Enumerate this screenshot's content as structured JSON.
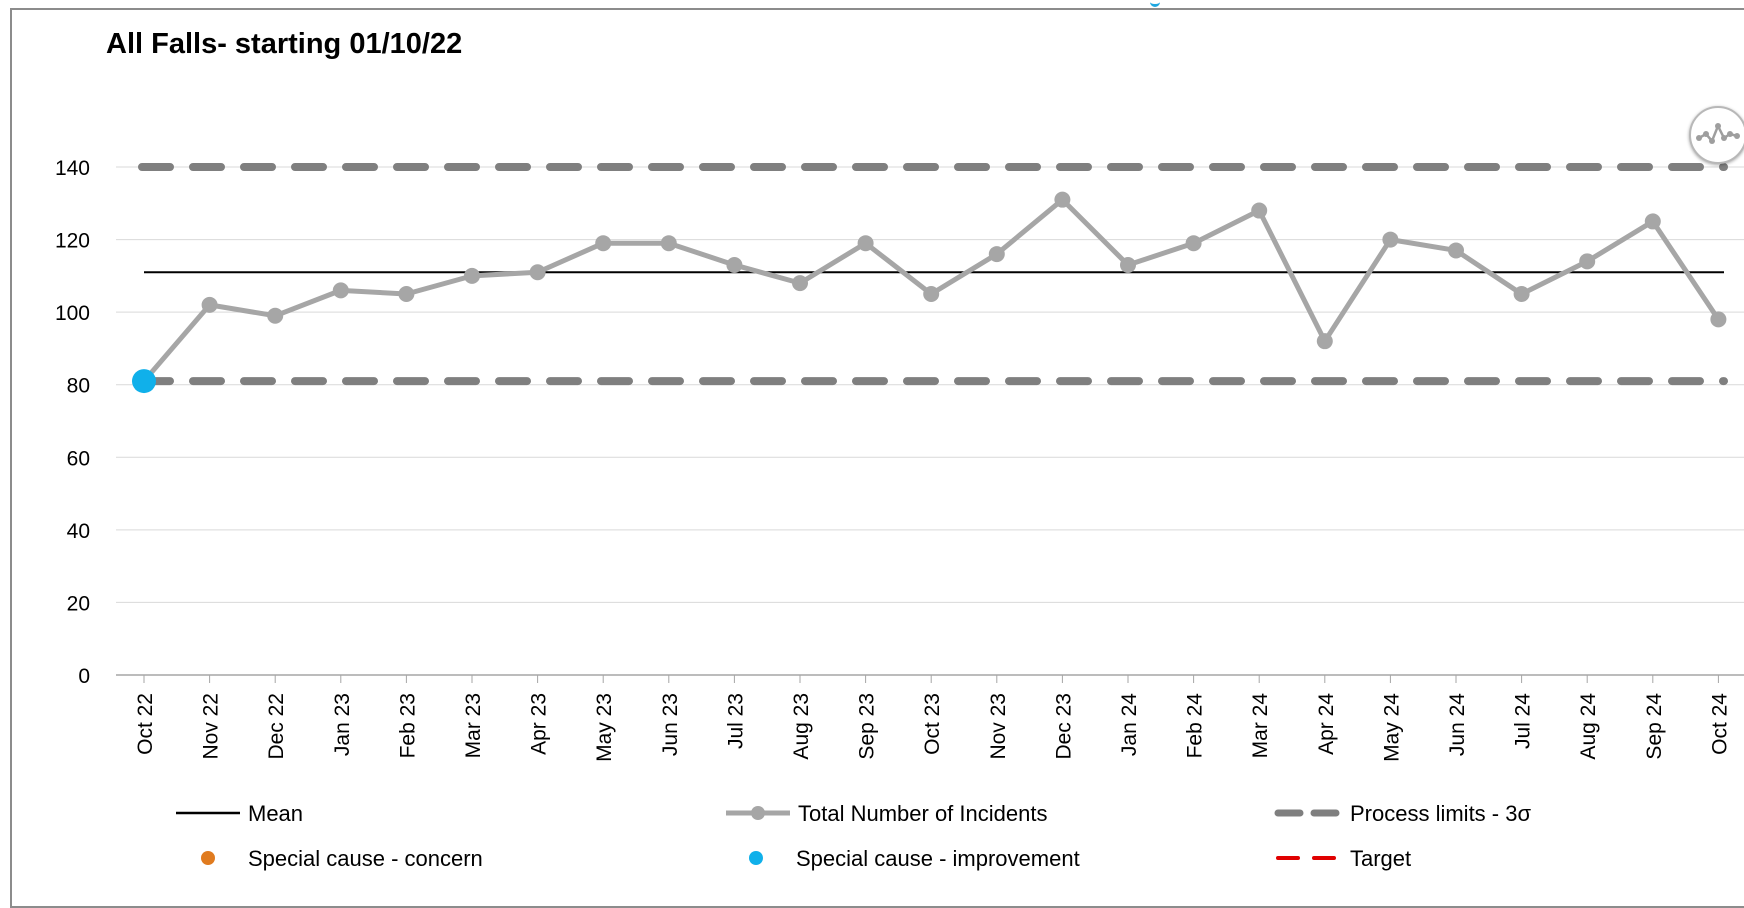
{
  "chart_data": {
    "type": "line",
    "title": "All Falls- starting 01/10/22",
    "categories": [
      "Oct 22",
      "Nov 22",
      "Dec 22",
      "Jan 23",
      "Feb 23",
      "Mar 23",
      "Apr 23",
      "May 23",
      "Jun 23",
      "Jul 23",
      "Aug 23",
      "Sep 23",
      "Oct 23",
      "Nov 23",
      "Dec 23",
      "Jan 24",
      "Feb 24",
      "Mar 24",
      "Apr 24",
      "May 24",
      "Jun 24",
      "Jul 24",
      "Aug 24",
      "Sep 24",
      "Oct 24"
    ],
    "series": [
      {
        "name": "Total Number of Incidents",
        "values": [
          81,
          102,
          99,
          106,
          105,
          110,
          111,
          119,
          119,
          113,
          108,
          119,
          105,
          116,
          131,
          113,
          119,
          128,
          92,
          120,
          117,
          105,
          114,
          125,
          98
        ],
        "color": "#a6a6a6"
      }
    ],
    "mean": 111,
    "upper_process_limit": 140,
    "lower_process_limit": 81,
    "special_cause_improvement_indices": [
      0
    ],
    "ylim": [
      0,
      140
    ],
    "yticks": [
      0,
      20,
      40,
      60,
      80,
      100,
      120,
      140
    ],
    "grid": true,
    "legend_position": "bottom",
    "legend": [
      {
        "label": "Mean",
        "kind": "line",
        "color": "#000000"
      },
      {
        "label": "Total Number of Incidents",
        "kind": "line-marker",
        "color": "#a6a6a6"
      },
      {
        "label": "Process limits - 3σ",
        "kind": "dash",
        "color": "#7f7f7f"
      },
      {
        "label": "Special cause - concern",
        "kind": "dot",
        "color": "#e07b1f"
      },
      {
        "label": "Special cause  - improvement",
        "kind": "dot",
        "color": "#10b0ea"
      },
      {
        "label": "Target",
        "kind": "dash-thin",
        "color": "#e00000"
      }
    ],
    "xlabel": "",
    "ylabel": ""
  },
  "icons": {
    "variation": "spc-variation-icon"
  }
}
